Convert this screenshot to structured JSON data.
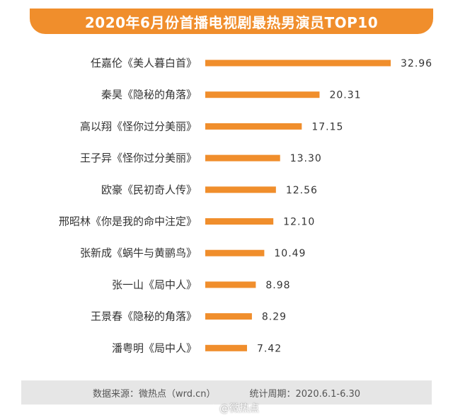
{
  "colors": {
    "accent": "#f08e2c",
    "bar": "#f08e2c",
    "footer_bg": "#e6e6e6"
  },
  "footer": {
    "source": "数据来源：微热点（wrd.cn）",
    "period": "统计周期：2020.6.1-6.30"
  },
  "watermark": {
    "text": "@微热点",
    "icon": "weibo-icon"
  },
  "chart_data": {
    "type": "bar",
    "orientation": "horizontal",
    "title": "2020年6月份首播电视剧最热男演员TOP10",
    "categories": [
      "任嘉伦《美人暮白首》",
      "秦昊《隐秘的角落》",
      "高以翔《怪你过分美丽》",
      "王子异《怪你过分美丽》",
      "欧豪《民初奇人传》",
      "邢昭林《你是我的命中注定》",
      "张新成《蜗牛与黄鹂鸟》",
      "张一山《局中人》",
      "王景春《隐秘的角落》",
      "潘粤明《局中人》"
    ],
    "values": [
      32.96,
      20.31,
      17.15,
      13.3,
      12.56,
      12.1,
      10.49,
      8.98,
      8.29,
      7.42
    ],
    "value_labels": [
      "32.96",
      "20.31",
      "17.15",
      "13.30",
      "12.56",
      "12.10",
      "10.49",
      "8.98",
      "8.29",
      "7.42"
    ],
    "xlim": [
      0,
      32.96
    ],
    "grid": false,
    "legend": "none"
  }
}
